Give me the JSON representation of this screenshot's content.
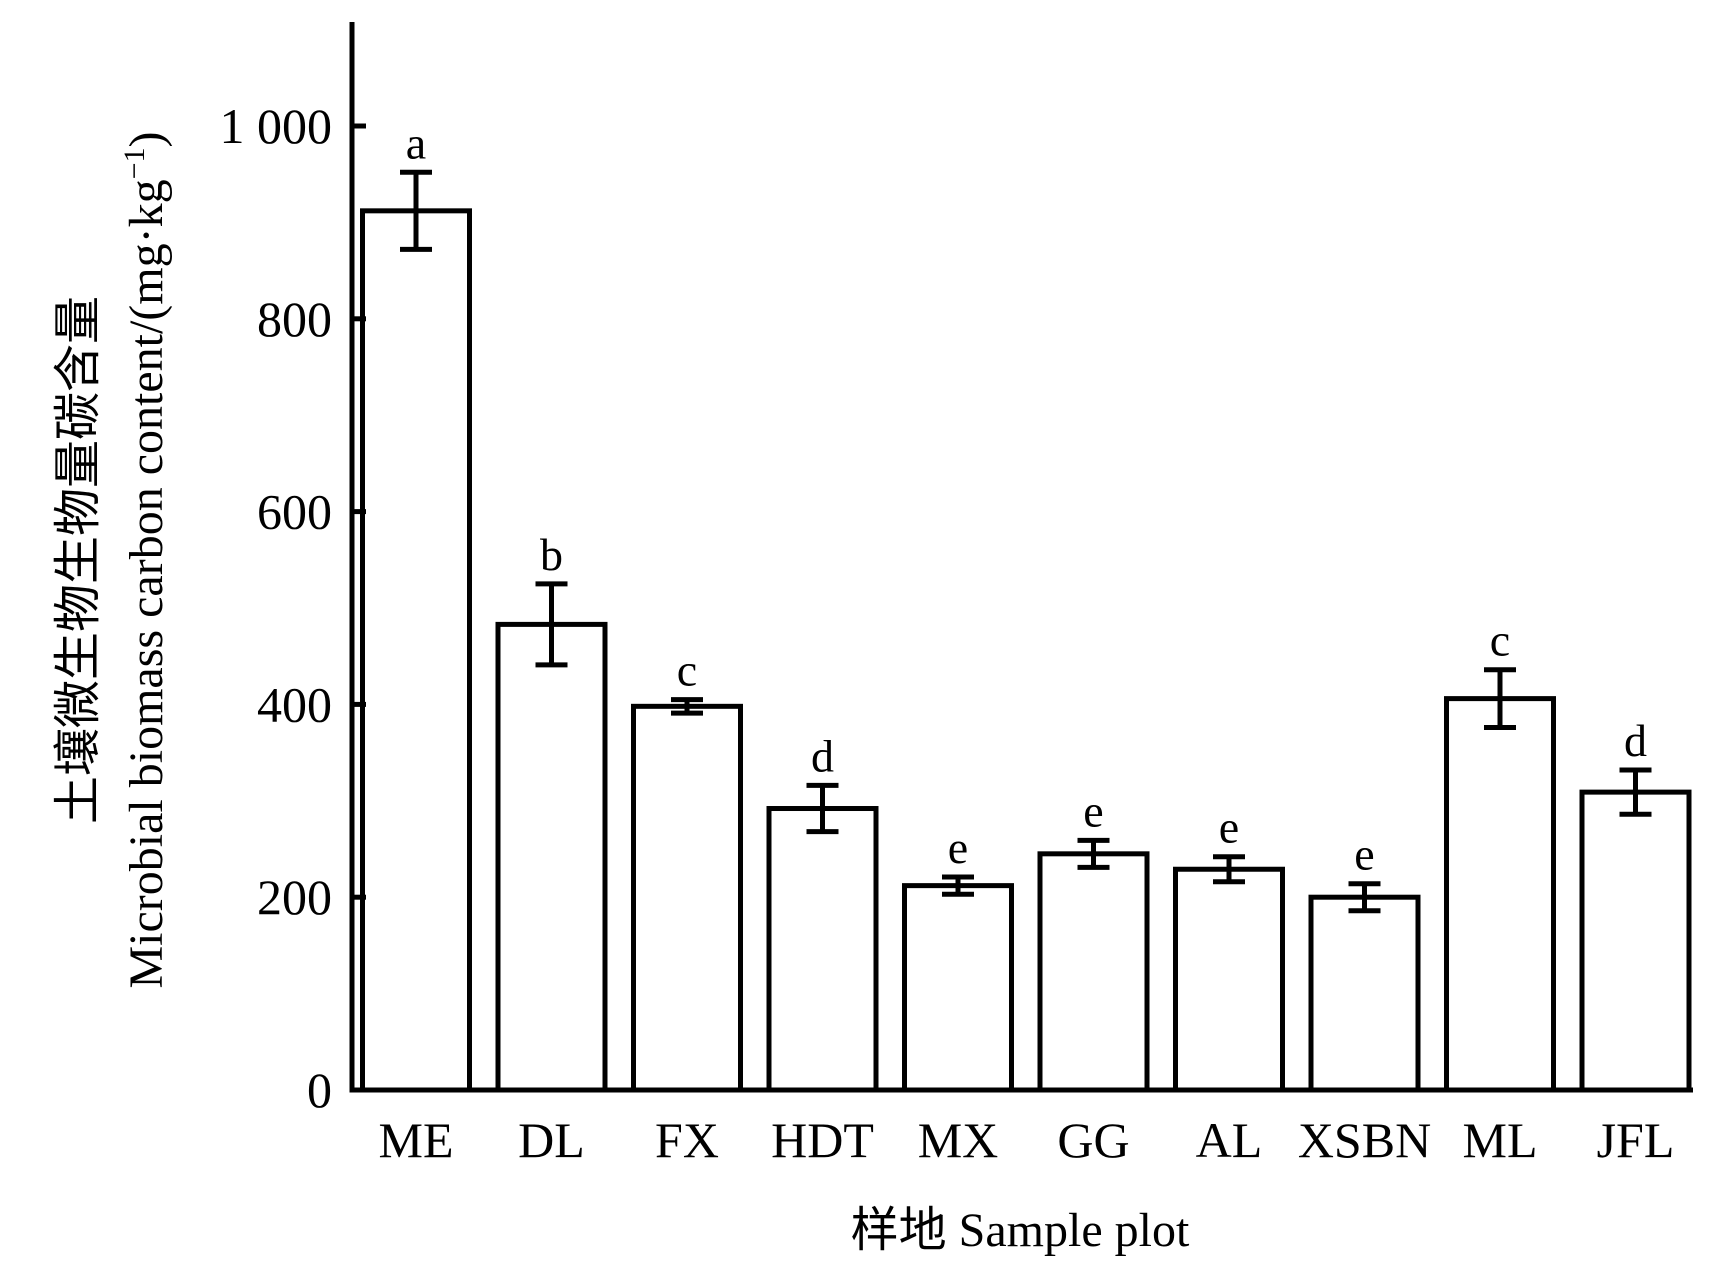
{
  "chart_data": {
    "type": "bar",
    "categories": [
      "ME",
      "DL",
      "FX",
      "HDT",
      "MX",
      "GG",
      "AL",
      "XSBN",
      "ML",
      "JFL"
    ],
    "values": [
      912,
      483,
      398,
      292,
      212,
      245,
      229,
      200,
      406,
      309
    ],
    "errors": [
      40,
      42,
      7,
      24,
      9,
      14,
      13,
      14,
      30,
      23
    ],
    "significance": [
      "a",
      "b",
      "c",
      "d",
      "e",
      "e",
      "e",
      "e",
      "c",
      "d"
    ],
    "xlabel": "样地  Sample plot",
    "ylabel_line1": "土壤微生物生物量碳含量",
    "ylabel_line2_main": "Microbial biomass carbon content/(mg·kg",
    "ylabel_line2_sup": "−1",
    "ylabel_line2_end": ")",
    "ylim": [
      0,
      1100
    ],
    "yticks": [
      0,
      200,
      400,
      600,
      800,
      1000
    ],
    "ytick_labels": [
      "0",
      "200",
      "400",
      "600",
      "800",
      "1 000"
    ],
    "grid": false,
    "legend": "none",
    "bar_color": "#ffffff",
    "edge_color": "#000000"
  }
}
